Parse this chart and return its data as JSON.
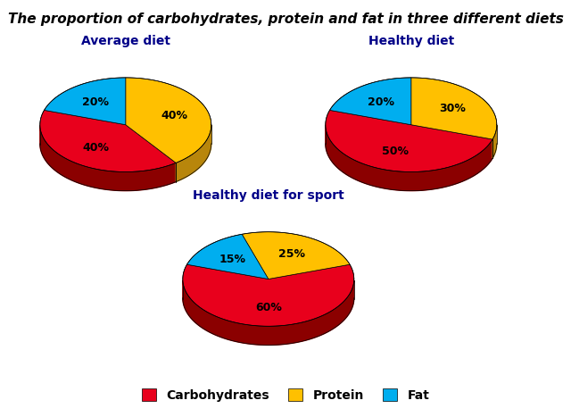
{
  "title": "The proportion of carbohydrates, protein and fat in three different diets",
  "charts": [
    {
      "label": "Average diet",
      "values": [
        40,
        40,
        20
      ],
      "pct_labels": [
        "40%",
        "40%",
        "20%"
      ],
      "startangle": 162
    },
    {
      "label": "Healthy diet",
      "values": [
        50,
        30,
        20
      ],
      "pct_labels": [
        "50%",
        "30%",
        "20%"
      ],
      "startangle": 162
    },
    {
      "label": "Healthy diet for sport",
      "values": [
        60,
        25,
        15
      ],
      "pct_labels": [
        "60%",
        "25%",
        "15%"
      ],
      "startangle": 162
    }
  ],
  "colors": [
    "#E8001C",
    "#FFC000",
    "#00AEEF"
  ],
  "dark_colors": [
    "#8B0000",
    "#B8860B",
    "#00008B"
  ],
  "legend_labels": [
    "Carbohydrates",
    "Protein",
    "Fat"
  ],
  "background_color": "#FFFFFF",
  "title_fontsize": 11,
  "title_style": "italic",
  "title_weight": "bold",
  "label_fontsize": 10,
  "pct_fontsize": 9
}
